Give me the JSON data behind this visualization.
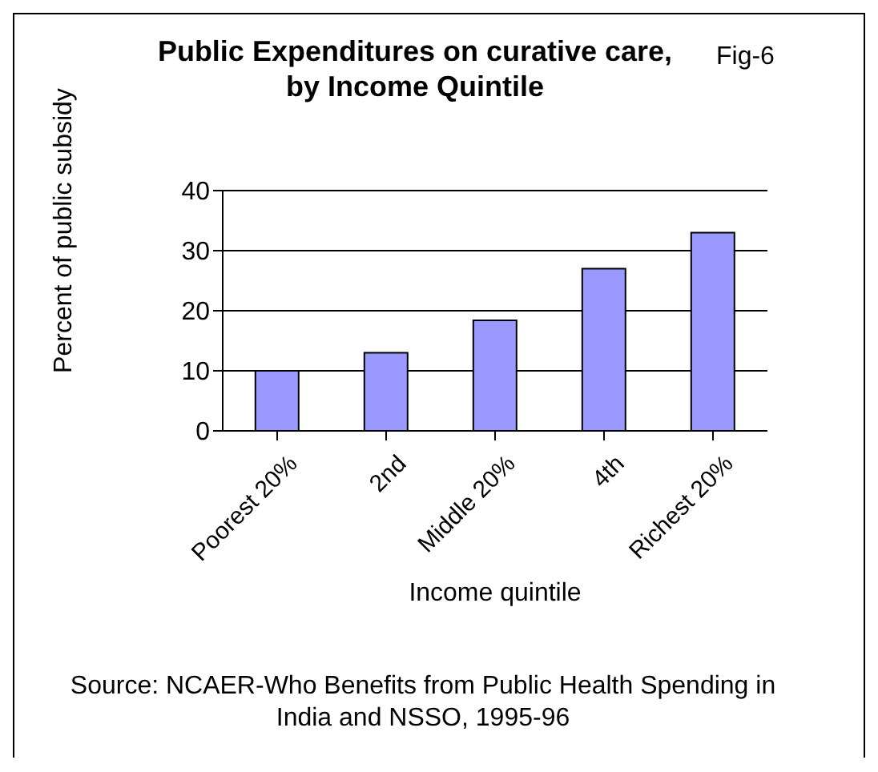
{
  "chart_data": {
    "type": "bar",
    "title": "Public Expenditures on curative care, by Income Quintile",
    "xlabel": "Income quintile",
    "ylabel": "Percent of public subsidy",
    "annotations": [
      "Fig-6",
      "Source: NCAER-Who Benefits from Public Health Spending in India and NSSO, 1995-96"
    ],
    "categories": [
      "Poorest 20%",
      "2nd",
      "Middle 20%",
      "4th",
      "Richest 20%"
    ],
    "values": [
      10,
      13,
      18.4,
      27,
      33
    ],
    "color": "#9999ff",
    "ylim": [
      0,
      40
    ],
    "yticks": [
      0,
      10,
      20,
      30,
      40
    ],
    "grid": "y",
    "legend": false
  }
}
